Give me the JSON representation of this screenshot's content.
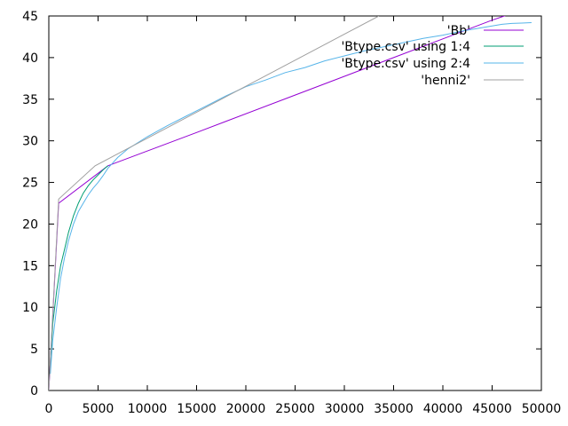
{
  "chart_data": {
    "type": "line",
    "title": "",
    "xlabel": "",
    "ylabel": "",
    "xlim": [
      0,
      50000
    ],
    "ylim": [
      0,
      45
    ],
    "xticks": [
      0,
      5000,
      10000,
      15000,
      20000,
      25000,
      30000,
      35000,
      40000,
      45000,
      50000
    ],
    "yticks": [
      0,
      5,
      10,
      15,
      20,
      25,
      30,
      35,
      40,
      45
    ],
    "grid": false,
    "legend_position": "top-right",
    "series": [
      {
        "name": "'Bb'",
        "color": "#9400d3",
        "x": [
          0,
          1000,
          6000,
          15000,
          25000,
          35000,
          45000,
          47000
        ],
        "y": [
          0,
          22.5,
          27,
          31,
          35.5,
          40,
          44.5,
          45.3
        ]
      },
      {
        "name": "'Btype.csv' using 1:4",
        "color": "#009e73",
        "x": [
          150,
          400,
          800,
          1200,
          1600,
          2000,
          2500,
          3000,
          3500,
          4000,
          4500,
          5000,
          5500,
          6000
        ],
        "y": [
          3,
          8,
          12,
          15,
          17,
          19,
          21,
          22.5,
          23.7,
          24.6,
          25.3,
          25.9,
          26.5,
          27
        ]
      },
      {
        "name": "'Btype.csv' using 2:4",
        "color": "#56b4e9",
        "x": [
          150,
          400,
          800,
          1200,
          1600,
          2000,
          2500,
          3000,
          3500,
          4000,
          4500,
          5000,
          5500,
          6000,
          7000,
          8000,
          10000,
          12000,
          14000,
          16000,
          18000,
          20000,
          22000,
          24000,
          26000,
          28000,
          30000,
          32000,
          34000,
          36000,
          38000,
          40000,
          42000,
          44000,
          46000,
          47000,
          48000,
          49000
        ],
        "y": [
          2,
          6,
          10,
          13.5,
          16,
          18,
          20,
          21.5,
          22.5,
          23.5,
          24.3,
          25,
          25.8,
          26.7,
          28,
          29,
          30.5,
          31.8,
          33,
          34.2,
          35.4,
          36.5,
          37.3,
          38.2,
          38.8,
          39.6,
          40.2,
          40.8,
          41.3,
          41.8,
          42.3,
          42.7,
          43.2,
          43.6,
          44,
          44.1,
          44.15,
          44.2
        ]
      },
      {
        "name": "'henni2'",
        "color": "#a0a0a0",
        "x": [
          0,
          1000,
          4700,
          33500
        ],
        "y": [
          0,
          23,
          27,
          45
        ]
      }
    ]
  }
}
